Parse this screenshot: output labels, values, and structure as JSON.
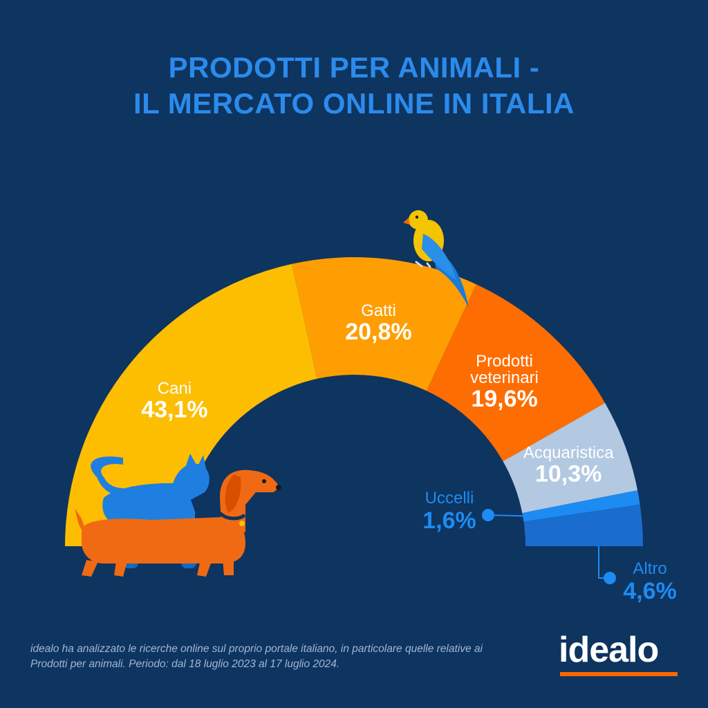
{
  "title": {
    "line1": "PRODOTTI PER ANIMALI -",
    "line2": "IL MERCATO ONLINE IN ITALIA"
  },
  "chart_data": {
    "type": "pie",
    "subtype": "half-donut",
    "unit": "%",
    "slices": [
      {
        "label": "Cani",
        "value": 43.1,
        "display": "43,1%",
        "color": "#fdbe02"
      },
      {
        "label": "Gatti",
        "value": 20.8,
        "display": "20,8%",
        "color": "#fe9e02"
      },
      {
        "label": "Prodotti veterinari",
        "value": 19.6,
        "display": "19,6%",
        "color": "#fe6d01"
      },
      {
        "label": "Acquaristica",
        "value": 10.3,
        "display": "10,3%",
        "color": "#b3c8e1"
      },
      {
        "label": "Uccelli",
        "value": 1.6,
        "display": "1,6%",
        "color": "#1c8cf2"
      },
      {
        "label": "Altro",
        "value": 4.6,
        "display": "4,6%",
        "color": "#1a6ccf"
      }
    ]
  },
  "footnote": "idealo ha analizzato le ricerche online sul proprio portale italiano, in particolare quelle relative ai Prodotti per animali. Periodo: dal 18 luglio 2023 al 17 luglio 2024.",
  "logo": {
    "text": "idealo",
    "accent_color": "#ff6600"
  },
  "illustrations": [
    "parrot-icon",
    "cat-icon",
    "dachshund-icon"
  ]
}
